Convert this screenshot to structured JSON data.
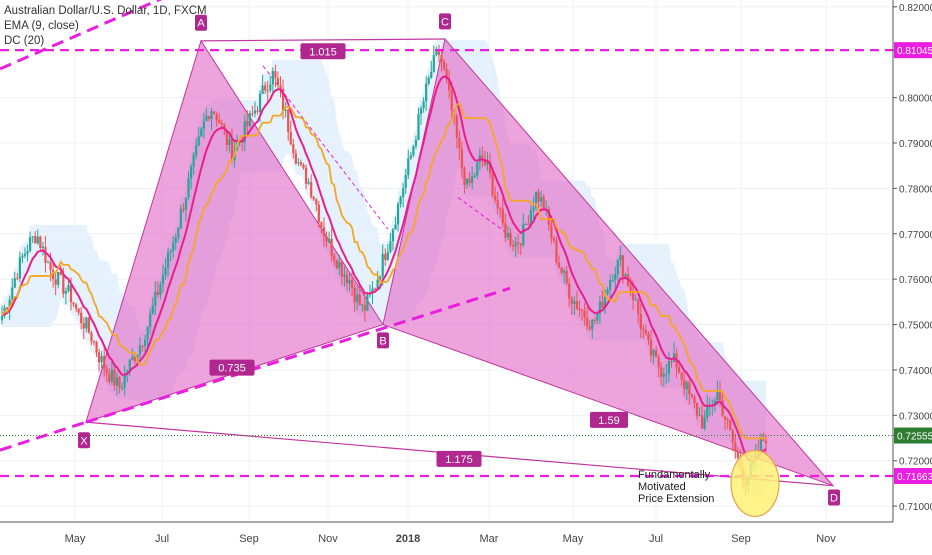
{
  "legend": {
    "symbol": "Australian Dollar/U.S. Dollar, 1D, FXCM",
    "ema": "EMA (9, close)",
    "dc": "DC (20)"
  },
  "colors": {
    "up_candle": "#26a69a",
    "down_candle": "#ef5350",
    "ema": "#e91e8c",
    "dc_mid": "#f5a623",
    "dc_band": "#cfe8fb",
    "pattern_fill": "#e26bc7",
    "pattern_edge": "#c2379e",
    "magenta_line": "#e91ee0",
    "price_line": "#2e7d32",
    "label_bg": "#b0278f",
    "ellipse_fill": "#fff176",
    "ellipse_edge": "#e6a04b"
  },
  "chart_data": {
    "type": "candlestick",
    "title": "Australian Dollar/U.S. Dollar, 1D, FXCM",
    "indicators": [
      "EMA (9, close)",
      "DC (20)"
    ],
    "x_ticks": [
      "May",
      "Jul",
      "Sep",
      "Nov",
      "2018",
      "Mar",
      "May",
      "Jul",
      "Sep",
      "Nov"
    ],
    "y_ticks": [
      "0.82000",
      "0.81045",
      "0.80000",
      "0.79000",
      "0.78000",
      "0.77000",
      "0.76000",
      "0.75000",
      "0.74000",
      "0.73000",
      "0.72555",
      "0.72000",
      "0.71663",
      "0.71000"
    ],
    "ylim": [
      0.7065,
      0.8215
    ],
    "pattern_points": {
      "X": {
        "label": "X",
        "price": 0.7285
      },
      "A": {
        "label": "A",
        "price": 0.8125
      },
      "B": {
        "label": "B",
        "price": 0.75
      },
      "C": {
        "label": "C",
        "price": 0.8129
      },
      "D": {
        "label": "D",
        "price": 0.7145
      }
    },
    "ratios": [
      {
        "value": "1.015",
        "between": "A-C"
      },
      {
        "value": "0.735",
        "between": "X-B"
      },
      {
        "value": "1.59",
        "between": "B-D"
      },
      {
        "value": "1.175",
        "between": "X-D"
      }
    ],
    "horizontal_levels": [
      {
        "price": 0.81045,
        "label": "0.81045",
        "style": "dashed",
        "color": "#e91ee0"
      },
      {
        "price": 0.71663,
        "label": "0.71663",
        "style": "dashed",
        "color": "#e91ee0"
      },
      {
        "price": 0.72555,
        "label": "0.72555",
        "style": "dotted",
        "color": "#2e7d32"
      }
    ],
    "annotation": [
      "Fundamentally",
      "Motivated",
      "Price Extension"
    ],
    "close_path": [
      [
        0.752,
        0.756,
        0.761,
        0.765,
        0.768,
        0.77,
        0.766,
        0.762,
        0.76,
        0.758
      ],
      [
        0.756,
        0.752,
        0.75,
        0.747,
        0.743,
        0.74,
        0.738,
        0.736,
        0.74,
        0.743
      ],
      [
        0.746,
        0.75,
        0.755,
        0.76,
        0.765,
        0.77,
        0.776,
        0.782,
        0.788,
        0.794
      ],
      [
        0.798,
        0.796,
        0.792,
        0.788,
        0.79,
        0.793,
        0.796,
        0.799,
        0.803,
        0.805
      ],
      [
        0.801,
        0.795,
        0.789,
        0.784,
        0.782,
        0.778,
        0.772,
        0.768,
        0.765,
        0.762
      ],
      [
        0.76,
        0.756,
        0.753,
        0.756,
        0.76,
        0.765,
        0.77,
        0.776,
        0.782,
        0.788
      ],
      [
        0.795,
        0.801,
        0.807,
        0.81,
        0.803,
        0.795,
        0.786,
        0.78,
        0.783,
        0.787
      ],
      [
        0.784,
        0.778,
        0.772,
        0.769,
        0.768,
        0.77,
        0.775,
        0.779,
        0.776,
        0.77
      ],
      [
        0.764,
        0.76,
        0.756,
        0.754,
        0.752,
        0.75,
        0.753,
        0.758,
        0.762,
        0.764
      ],
      [
        0.76,
        0.756,
        0.75,
        0.745,
        0.742,
        0.74,
        0.741,
        0.742,
        0.738,
        0.734
      ],
      [
        0.731,
        0.728,
        0.732,
        0.735,
        0.73,
        0.725,
        0.72,
        0.716,
        0.718,
        0.723
      ],
      [
        0.7255
      ]
    ]
  }
}
